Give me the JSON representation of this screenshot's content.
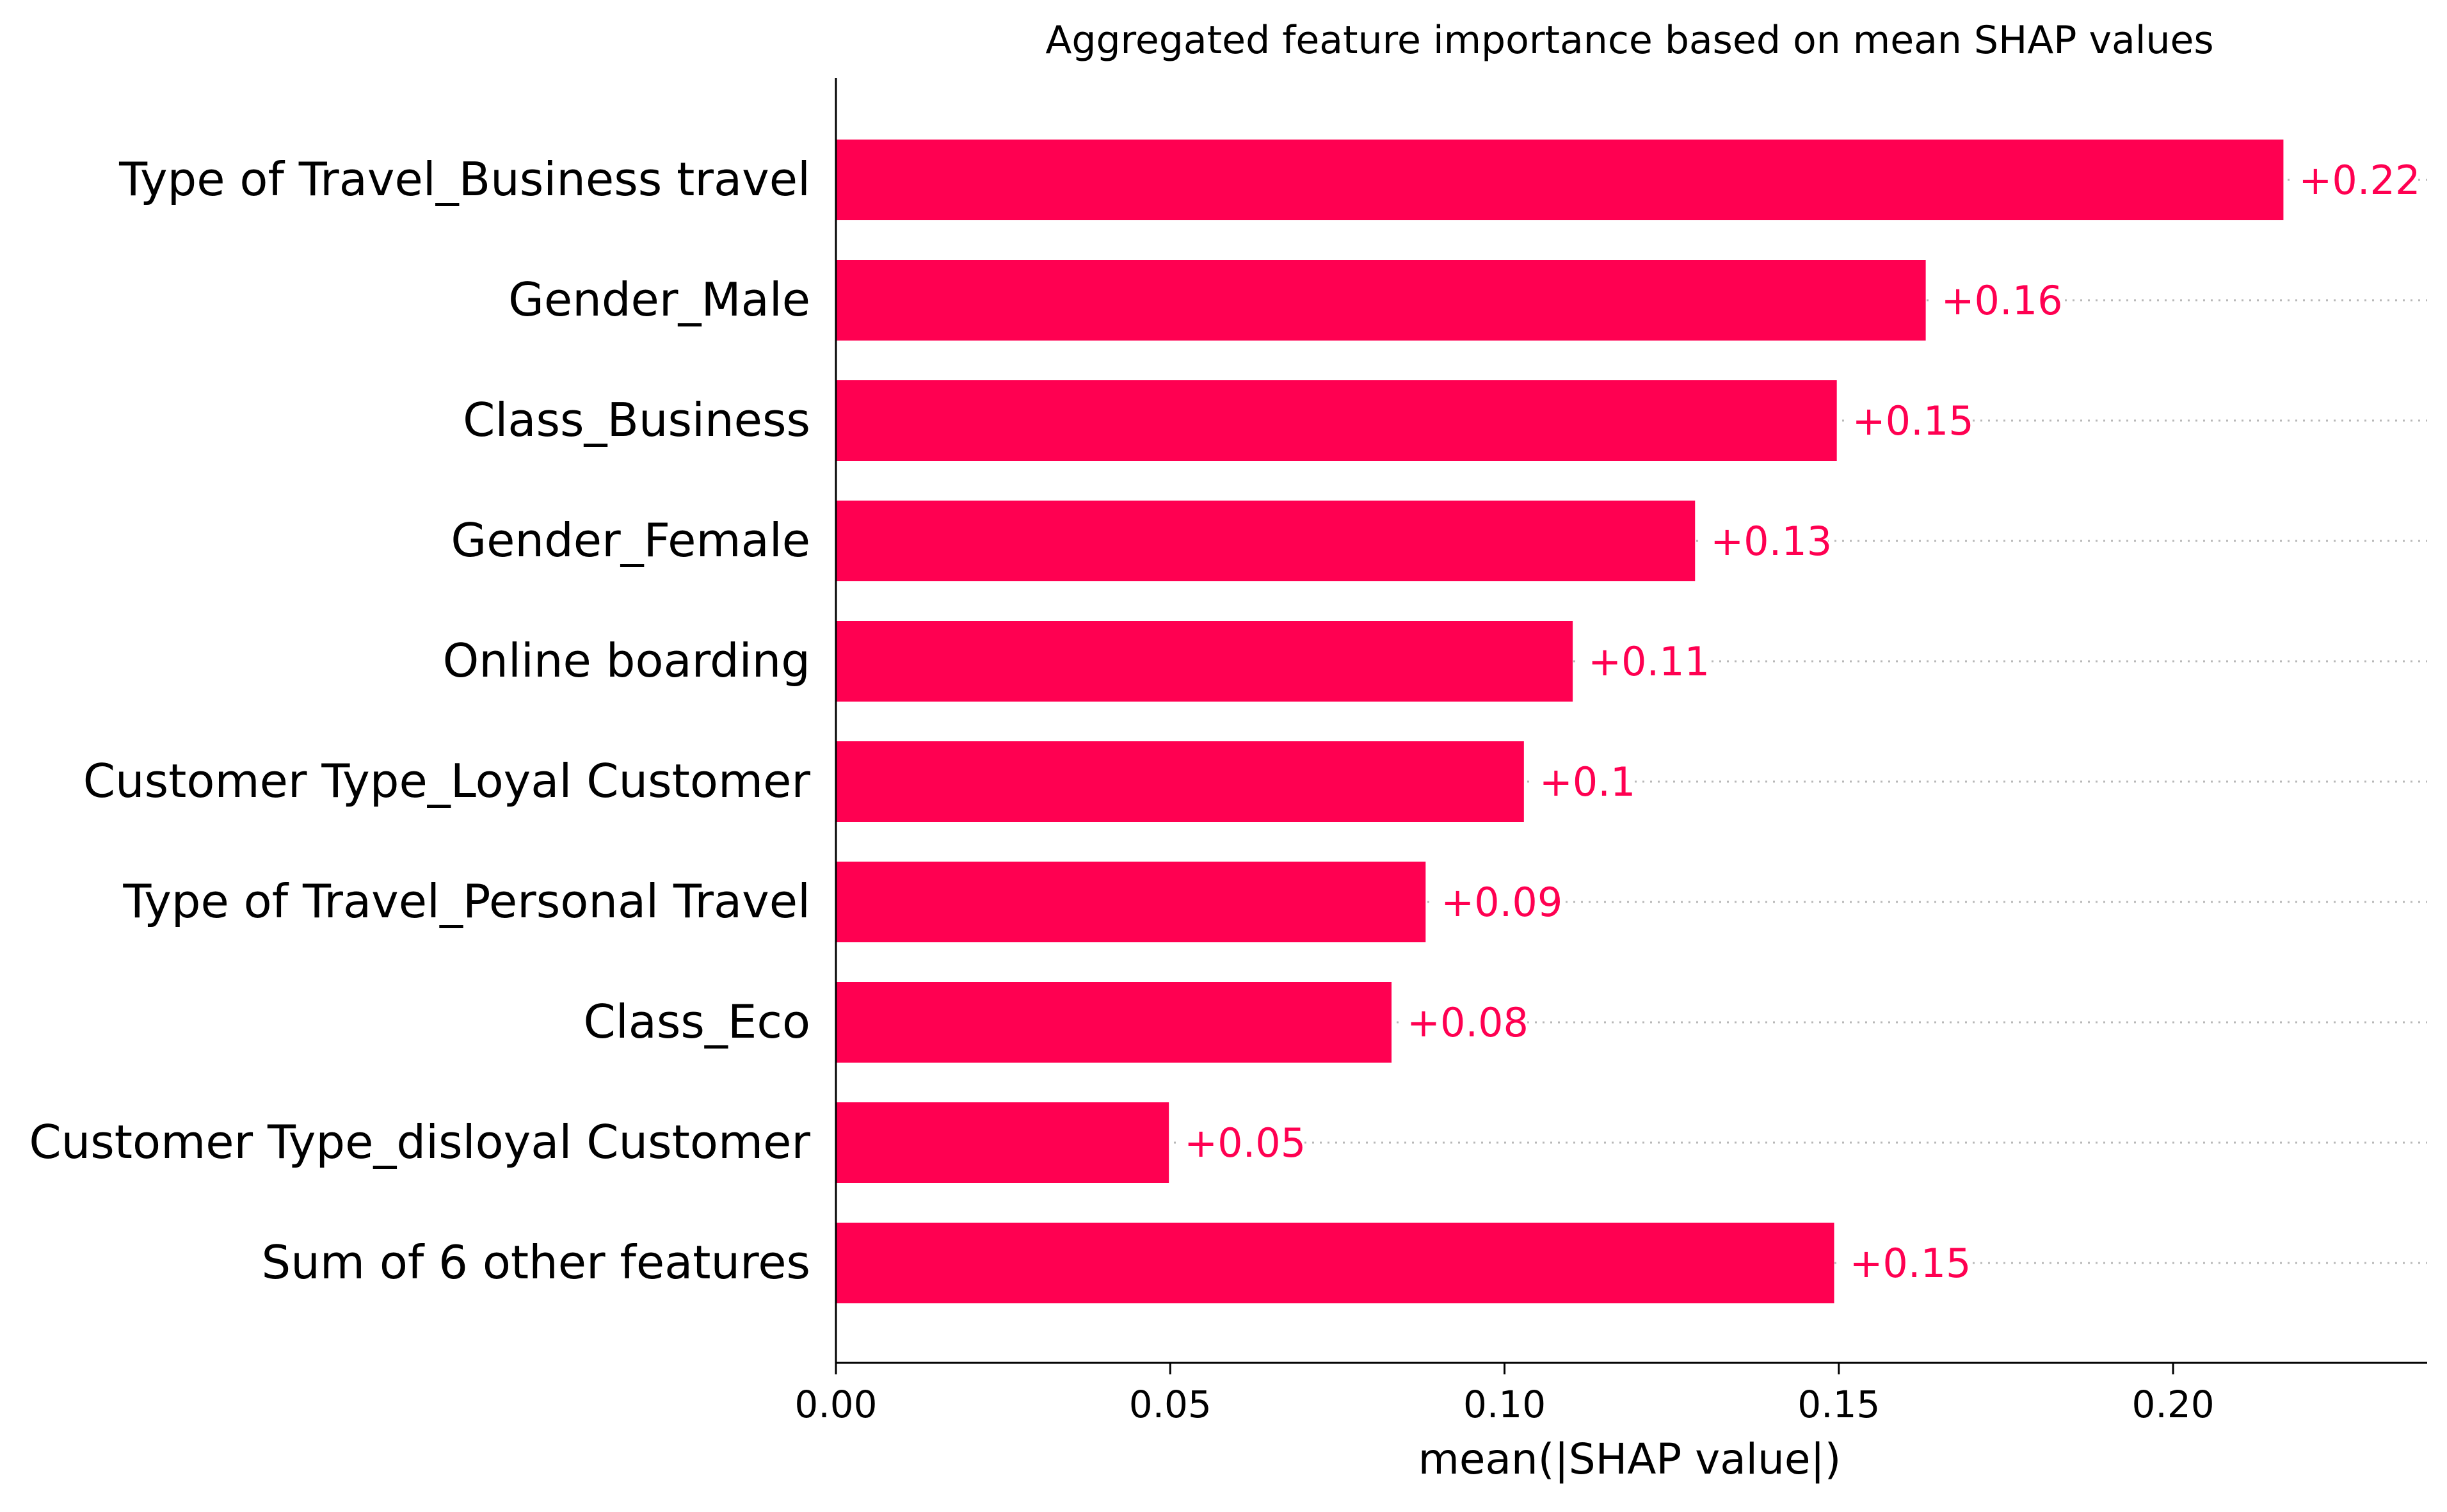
{
  "chart_data": {
    "type": "bar",
    "orientation": "horizontal",
    "title": "Aggregated feature importance based on mean SHAP values",
    "xlabel": "mean(|SHAP value|)",
    "ylabel": "",
    "xlim": [
      0,
      0.238
    ],
    "xticks": [
      "0.00",
      "0.05",
      "0.10",
      "0.15",
      "0.20"
    ],
    "xtick_values": [
      0,
      0.05,
      0.1,
      0.15,
      0.2
    ],
    "bar_color": "#ff0051",
    "categories": [
      "Type of Travel_Business travel",
      "Gender_Male",
      "Class_Business",
      "Gender_Female",
      "Online boarding",
      "Customer Type_Loyal Customer",
      "Type of Travel_Personal Travel",
      "Class_Eco",
      "Customer Type_disloyal Customer",
      "Sum of 6 other features"
    ],
    "values": [
      0.2165,
      0.163,
      0.1497,
      0.1285,
      0.1102,
      0.1029,
      0.0882,
      0.0831,
      0.0498,
      0.1493
    ],
    "value_labels": [
      "+0.22",
      "+0.16",
      "+0.15",
      "+0.13",
      "+0.11",
      "+0.1",
      "+0.09",
      "+0.08",
      "+0.05",
      "+0.15"
    ],
    "grid": "dotted guide lines per bar",
    "legend": "none"
  }
}
